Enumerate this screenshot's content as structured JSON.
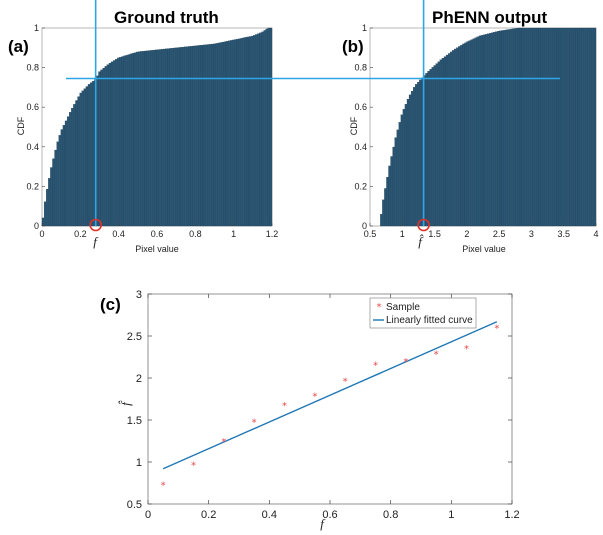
{
  "colors": {
    "bar": "#2a5673",
    "bar_edge": "#1a3a52",
    "guide": "#2ea6e6",
    "marker_circle": "#e0302a",
    "sample": "#e84b4b",
    "fit": "#1f77b4"
  },
  "panels": {
    "a": {
      "label": "(a)",
      "title": "Ground truth",
      "xlabel": "Pixel value",
      "ylabel": "CDF",
      "marker_label": "f"
    },
    "b": {
      "label": "(b)",
      "title": "PhENN output",
      "xlabel": "Pixel value",
      "ylabel": "CDF",
      "marker_label": "f̂"
    },
    "c": {
      "label": "(c)",
      "xlabel": "f",
      "ylabel": "f̂"
    }
  },
  "chart_data": [
    {
      "type": "area",
      "panel": "a",
      "xlabel": "Pixel value",
      "ylabel": "CDF",
      "xlim": [
        0,
        1.2
      ],
      "ylim": [
        0,
        1
      ],
      "xticks": [
        0,
        0.2,
        0.4,
        0.6,
        0.8,
        1,
        1.2
      ],
      "yticks": [
        0,
        0.2,
        0.4,
        0.6,
        0.8,
        1
      ],
      "x": [
        0.0,
        0.02,
        0.05,
        0.08,
        0.1,
        0.15,
        0.2,
        0.25,
        0.28,
        0.3,
        0.35,
        0.4,
        0.5,
        0.6,
        0.7,
        0.8,
        0.9,
        1.0,
        1.05,
        1.1,
        1.15,
        1.18,
        1.2
      ],
      "y": [
        0.0,
        0.15,
        0.3,
        0.42,
        0.48,
        0.58,
        0.67,
        0.72,
        0.74,
        0.78,
        0.82,
        0.85,
        0.88,
        0.89,
        0.9,
        0.91,
        0.92,
        0.94,
        0.95,
        0.96,
        0.98,
        1.0,
        1.0
      ],
      "marker": {
        "x": 0.28,
        "y": 0.745
      }
    },
    {
      "type": "area",
      "panel": "b",
      "xlabel": "Pixel value",
      "ylabel": "CDF",
      "xlim": [
        0.5,
        4
      ],
      "ylim": [
        0,
        1
      ],
      "xticks": [
        0.5,
        1,
        1.5,
        2,
        2.5,
        3,
        3.5,
        4
      ],
      "yticks": [
        0,
        0.2,
        0.4,
        0.6,
        0.8,
        1
      ],
      "x": [
        0.5,
        0.65,
        0.7,
        0.8,
        0.9,
        1.0,
        1.1,
        1.2,
        1.3,
        1.4,
        1.6,
        1.8,
        2.0,
        2.2,
        2.5,
        2.8,
        3.0,
        3.5,
        4.0
      ],
      "y": [
        0.0,
        0.0,
        0.12,
        0.3,
        0.45,
        0.57,
        0.65,
        0.71,
        0.745,
        0.78,
        0.84,
        0.89,
        0.93,
        0.96,
        0.985,
        1.0,
        1.0,
        1.0,
        1.0
      ],
      "marker": {
        "x": 1.33,
        "y": 0.745
      }
    },
    {
      "type": "scatter",
      "panel": "c",
      "xlabel": "f",
      "ylabel": "f̂",
      "xlim": [
        0,
        1.2
      ],
      "ylim": [
        0.5,
        3
      ],
      "xticks": [
        0,
        0.2,
        0.4,
        0.6,
        0.8,
        1,
        1.2
      ],
      "yticks": [
        0.5,
        1,
        1.5,
        2,
        2.5,
        3
      ],
      "legend": {
        "position": "top-right",
        "entries": [
          "Sample",
          "Linearly fitted curve"
        ]
      },
      "series": [
        {
          "name": "Sample",
          "type": "scatter",
          "x": [
            0.05,
            0.15,
            0.25,
            0.35,
            0.45,
            0.55,
            0.65,
            0.75,
            0.85,
            0.95,
            1.05,
            1.15
          ],
          "y": [
            0.73,
            0.97,
            1.25,
            1.48,
            1.68,
            1.79,
            1.97,
            2.16,
            2.2,
            2.29,
            2.36,
            2.6
          ]
        },
        {
          "name": "Linearly fitted curve",
          "type": "line",
          "x": [
            0.05,
            1.15
          ],
          "y": [
            0.92,
            2.67
          ]
        }
      ]
    }
  ]
}
